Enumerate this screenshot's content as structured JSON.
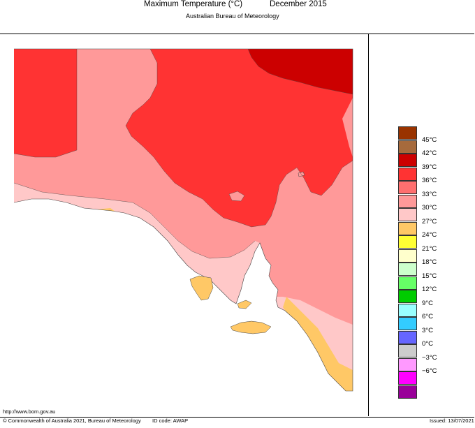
{
  "title": "Maximum Temperature (°C)",
  "period": "December 2015",
  "agency": "Australian Bureau of Meteorology",
  "url": "http://www.bom.gov.au",
  "copyright": "© Commonwealth of Australia 2021, Bureau of Meteorology",
  "id_code": "ID code: AWAP",
  "issued": "Issued: 13/07/2021",
  "legend": [
    {
      "label": "45°C",
      "color": "#993300"
    },
    {
      "label": "42°C",
      "color": "#a66a3c"
    },
    {
      "label": "39°C",
      "color": "#cc0000"
    },
    {
      "label": "36°C",
      "color": "#ff3333"
    },
    {
      "label": "33°C",
      "color": "#ff6f6f"
    },
    {
      "label": "30°C",
      "color": "#ff9999"
    },
    {
      "label": "27°C",
      "color": "#ffc8c8"
    },
    {
      "label": "24°C",
      "color": "#ffc866"
    },
    {
      "label": "21°C",
      "color": "#ffff33"
    },
    {
      "label": "18°C",
      "color": "#ffffcc"
    },
    {
      "label": "15°C",
      "color": "#ccffcc"
    },
    {
      "label": "12°C",
      "color": "#66ff66"
    },
    {
      "label": "9°C",
      "color": "#00cc00"
    },
    {
      "label": "6°C",
      "color": "#99ffff"
    },
    {
      "label": "3°C",
      "color": "#33ccff"
    },
    {
      "label": "0°C",
      "color": "#6666ff"
    },
    {
      "label": "−3°C",
      "color": "#cccccc"
    },
    {
      "label": "−6°C",
      "color": "#ff99ff"
    },
    {
      "label": "",
      "color": "#ff00ff"
    },
    {
      "label": "",
      "color": "#990099"
    }
  ]
}
